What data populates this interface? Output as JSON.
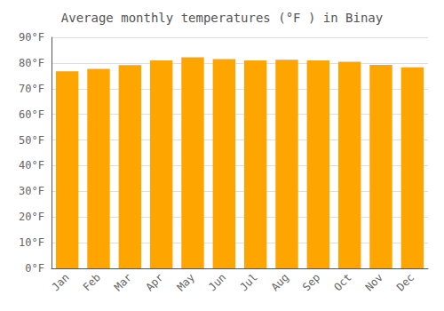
{
  "chart_data": {
    "type": "bar",
    "title": "Average monthly temperatures (°F ) in Binay",
    "categories": [
      "Jan",
      "Feb",
      "Mar",
      "Apr",
      "May",
      "Jun",
      "Jul",
      "Aug",
      "Sep",
      "Oct",
      "Nov",
      "Dec"
    ],
    "values": [
      76.8,
      77.7,
      79.2,
      81.0,
      82.2,
      81.5,
      81.0,
      81.3,
      81.0,
      80.5,
      79.3,
      78.3
    ],
    "color": "#FFA500",
    "ylim": [
      0,
      90
    ],
    "yticks": [
      {
        "value": 0,
        "label": "0°F"
      },
      {
        "value": 10,
        "label": "10°F"
      },
      {
        "value": 20,
        "label": "20°F"
      },
      {
        "value": 30,
        "label": "30°F"
      },
      {
        "value": 40,
        "label": "40°F"
      },
      {
        "value": 50,
        "label": "50°F"
      },
      {
        "value": 60,
        "label": "60°F"
      },
      {
        "value": 70,
        "label": "70°F"
      },
      {
        "value": 80,
        "label": "80°F"
      },
      {
        "value": 90,
        "label": "90°F"
      }
    ],
    "grid": true
  }
}
